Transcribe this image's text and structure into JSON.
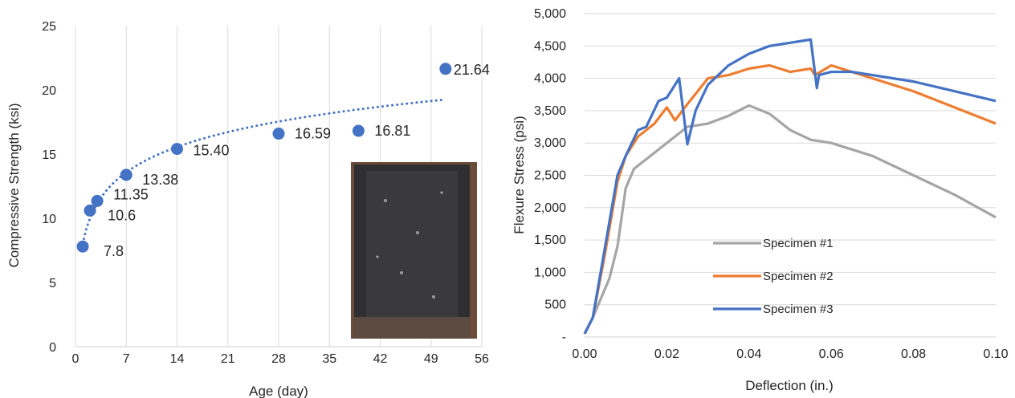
{
  "chart_data": [
    {
      "type": "scatter",
      "title": "",
      "xlabel": "Age (day)",
      "ylabel": "Compressive Strength (ksi)",
      "xlim": [
        0,
        56
      ],
      "ylim": [
        0,
        25
      ],
      "xticks": [
        "0",
        "7",
        "14",
        "21",
        "28",
        "35",
        "42",
        "49",
        "56"
      ],
      "yticks": [
        "0",
        "5",
        "10",
        "15",
        "20",
        "25"
      ],
      "grid": "vertical",
      "marker_color": "#4472C4",
      "points": [
        {
          "x": 1,
          "y": 7.8,
          "label": "7.8"
        },
        {
          "x": 2,
          "y": 10.6,
          "label": "10.6"
        },
        {
          "x": 3,
          "y": 11.35,
          "label": "11.35"
        },
        {
          "x": 7,
          "y": 13.38,
          "label": "13.38"
        },
        {
          "x": 14,
          "y": 15.4,
          "label": "15.40"
        },
        {
          "x": 28,
          "y": 16.59,
          "label": "16.59"
        },
        {
          "x": 39,
          "y": 16.81,
          "label": "16.81"
        },
        {
          "x": 51,
          "y": 21.64,
          "label": "21.64"
        }
      ],
      "trendline": {
        "type": "logarithmic",
        "style": "dotted",
        "color": "#4472C4",
        "x_range": [
          1,
          51
        ]
      },
      "inset_photo": "concrete-specimen-photo"
    },
    {
      "type": "line",
      "title": "",
      "xlabel": "Deflection (in.)",
      "ylabel": "Flexure Stress (psi)",
      "xlim": [
        0,
        0.1
      ],
      "ylim": [
        0,
        5000
      ],
      "xticks": [
        "0.00",
        "0.02",
        "0.04",
        "0.06",
        "0.08",
        "0.10"
      ],
      "yticks": [
        "-",
        "500",
        "1,000",
        "1,500",
        "2,000",
        "2,500",
        "3,000",
        "3,500",
        "4,000",
        "4,500",
        "5,000"
      ],
      "grid": "horizontal",
      "legend_position": "inside-bottom-center",
      "series": [
        {
          "name": "Specimen #1",
          "color": "#A5A5A5",
          "x": [
            0,
            0.002,
            0.004,
            0.006,
            0.008,
            0.01,
            0.012,
            0.015,
            0.02,
            0.025,
            0.03,
            0.035,
            0.04,
            0.045,
            0.05,
            0.055,
            0.06,
            0.07,
            0.08,
            0.09,
            0.1
          ],
          "y": [
            50,
            300,
            600,
            900,
            1400,
            2300,
            2600,
            2750,
            3000,
            3250,
            3300,
            3420,
            3580,
            3450,
            3200,
            3050,
            3000,
            2800,
            2500,
            2200,
            1850
          ]
        },
        {
          "name": "Specimen #2",
          "color": "#ED7D31",
          "x": [
            0,
            0.002,
            0.005,
            0.008,
            0.01,
            0.013,
            0.015,
            0.017,
            0.02,
            0.022,
            0.025,
            0.03,
            0.035,
            0.04,
            0.045,
            0.05,
            0.055,
            0.056,
            0.06,
            0.065,
            0.07,
            0.08,
            0.09,
            0.1
          ],
          "y": [
            50,
            300,
            1300,
            2400,
            2800,
            3100,
            3200,
            3300,
            3550,
            3350,
            3600,
            4000,
            4050,
            4150,
            4200,
            4100,
            4150,
            4050,
            4200,
            4100,
            4000,
            3800,
            3550,
            3300
          ]
        },
        {
          "name": "Specimen #3",
          "color": "#4472C4",
          "x": [
            0,
            0.002,
            0.005,
            0.008,
            0.01,
            0.013,
            0.015,
            0.018,
            0.02,
            0.023,
            0.025,
            0.027,
            0.03,
            0.035,
            0.04,
            0.045,
            0.05,
            0.055,
            0.0565,
            0.057,
            0.06,
            0.065,
            0.07,
            0.08,
            0.09,
            0.1
          ],
          "y": [
            50,
            300,
            1400,
            2500,
            2800,
            3200,
            3250,
            3650,
            3700,
            4000,
            2980,
            3500,
            3900,
            4200,
            4380,
            4500,
            4550,
            4600,
            3850,
            4050,
            4100,
            4100,
            4050,
            3950,
            3800,
            3650
          ]
        }
      ]
    }
  ]
}
